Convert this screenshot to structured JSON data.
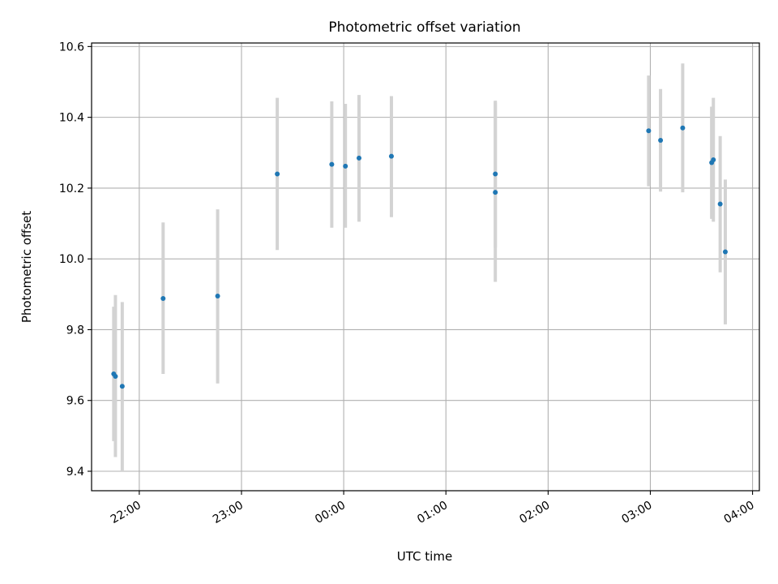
{
  "chart_data": {
    "type": "scatter",
    "title": "Photometric offset variation",
    "xlabel": "UTC time",
    "ylabel": "Photometric offset",
    "x_axis_kind": "time",
    "x_range": [
      "21:32",
      "04:04"
    ],
    "ylim": [
      9.345,
      10.61
    ],
    "x_ticks": [
      "22:00",
      "23:00",
      "00:00",
      "01:00",
      "02:00",
      "03:00",
      "04:00"
    ],
    "y_ticks": [
      9.4,
      9.6,
      9.8,
      10.0,
      10.2,
      10.4,
      10.6
    ],
    "y_tick_labels": [
      "9.4",
      "9.6",
      "9.8",
      "10.0",
      "10.2",
      "10.4",
      "10.6"
    ],
    "grid": true,
    "point_color": "#1f77b4",
    "errorbar_color": "#d3d3d3",
    "points": [
      {
        "x": "21:45",
        "y": 9.675,
        "y_low": 9.485,
        "y_high": 9.865
      },
      {
        "x": "21:46",
        "y": 9.668,
        "y_low": 9.44,
        "y_high": 9.898
      },
      {
        "x": "21:50",
        "y": 9.64,
        "y_low": 9.4,
        "y_high": 9.878
      },
      {
        "x": "22:14",
        "y": 9.888,
        "y_low": 9.675,
        "y_high": 10.103
      },
      {
        "x": "22:46",
        "y": 9.895,
        "y_low": 9.648,
        "y_high": 10.14
      },
      {
        "x": "23:21",
        "y": 10.24,
        "y_low": 10.025,
        "y_high": 10.455
      },
      {
        "x": "23:53",
        "y": 10.267,
        "y_low": 10.088,
        "y_high": 10.445
      },
      {
        "x": "00:01",
        "y": 10.262,
        "y_low": 10.088,
        "y_high": 10.438
      },
      {
        "x": "00:09",
        "y": 10.285,
        "y_low": 10.105,
        "y_high": 10.463
      },
      {
        "x": "00:28",
        "y": 10.29,
        "y_low": 10.118,
        "y_high": 10.46
      },
      {
        "x": "01:29",
        "y": 10.24,
        "y_low": 10.032,
        "y_high": 10.447
      },
      {
        "x": "01:29",
        "y": 10.188,
        "y_low": 9.935,
        "y_high": 10.443
      },
      {
        "x": "02:59",
        "y": 10.362,
        "y_low": 10.205,
        "y_high": 10.518
      },
      {
        "x": "03:06",
        "y": 10.335,
        "y_low": 10.19,
        "y_high": 10.48
      },
      {
        "x": "03:19",
        "y": 10.37,
        "y_low": 10.188,
        "y_high": 10.552
      },
      {
        "x": "03:36",
        "y": 10.272,
        "y_low": 10.113,
        "y_high": 10.43
      },
      {
        "x": "03:37",
        "y": 10.28,
        "y_low": 10.105,
        "y_high": 10.455
      },
      {
        "x": "03:41",
        "y": 10.155,
        "y_low": 9.962,
        "y_high": 10.347
      },
      {
        "x": "03:44",
        "y": 10.02,
        "y_low": 9.815,
        "y_high": 10.224
      }
    ]
  }
}
